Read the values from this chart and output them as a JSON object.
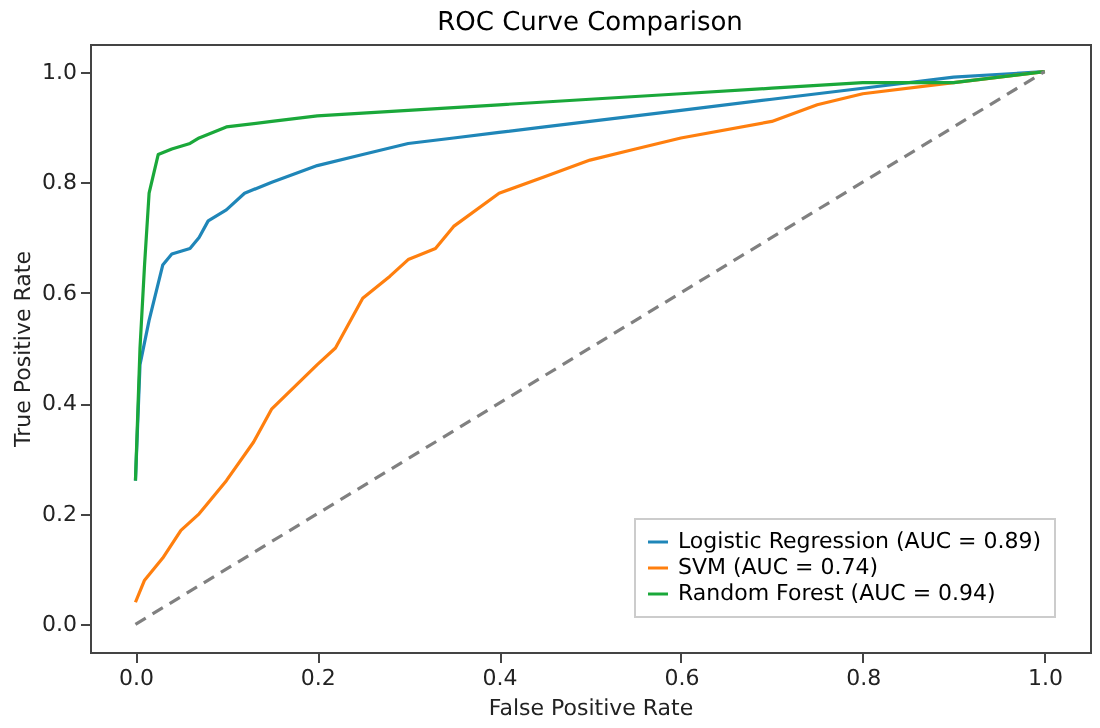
{
  "chart_data": {
    "type": "line",
    "title": "ROC Curve Comparison",
    "xlabel": "False Positive Rate",
    "ylabel": "True Positive Rate",
    "xlim": [
      -0.05,
      1.05
    ],
    "ylim": [
      -0.05,
      1.05
    ],
    "xticks": [
      {
        "value": 0,
        "label": "0.0"
      },
      {
        "value": 0.2,
        "label": "0.2"
      },
      {
        "value": 0.4,
        "label": "0.4"
      },
      {
        "value": 0.6,
        "label": "0.6"
      },
      {
        "value": 0.8,
        "label": "0.8"
      },
      {
        "value": 1,
        "label": "1.0"
      }
    ],
    "yticks": [
      {
        "value": 0,
        "label": "0.0"
      },
      {
        "value": 0.2,
        "label": "0.2"
      },
      {
        "value": 0.4,
        "label": "0.4"
      },
      {
        "value": 0.6,
        "label": "0.6"
      },
      {
        "value": 0.8,
        "label": "0.8"
      },
      {
        "value": 1,
        "label": "1.0"
      }
    ],
    "grid": false,
    "legend": "bottom right",
    "line_style": "solid",
    "marker": "none",
    "series": [
      {
        "name": "Logistic Regression (AUC = 0.89)",
        "color": "#1f86b8",
        "x": [
          0,
          0.005,
          0.015,
          0.03,
          0.04,
          0.06,
          0.07,
          0.08,
          0.1,
          0.12,
          0.15,
          0.2,
          0.25,
          0.3,
          0.35,
          0.4,
          0.45,
          0.5,
          0.6,
          0.7,
          0.8,
          0.9,
          1
        ],
        "values": [
          0.26,
          0.47,
          0.55,
          0.65,
          0.67,
          0.68,
          0.7,
          0.73,
          0.75,
          0.78,
          0.8,
          0.83,
          0.85,
          0.87,
          0.88,
          0.89,
          0.9,
          0.91,
          0.93,
          0.95,
          0.97,
          0.99,
          1
        ]
      },
      {
        "name": "SVM (AUC = 0.74)",
        "color": "#ff7f0e",
        "x": [
          0,
          0.01,
          0.03,
          0.05,
          0.07,
          0.1,
          0.13,
          0.15,
          0.2,
          0.22,
          0.25,
          0.28,
          0.3,
          0.33,
          0.35,
          0.4,
          0.45,
          0.5,
          0.55,
          0.6,
          0.7,
          0.75,
          0.8,
          0.9,
          1
        ],
        "values": [
          0.04,
          0.08,
          0.12,
          0.17,
          0.2,
          0.26,
          0.33,
          0.39,
          0.47,
          0.5,
          0.59,
          0.63,
          0.66,
          0.68,
          0.72,
          0.78,
          0.81,
          0.84,
          0.86,
          0.88,
          0.91,
          0.94,
          0.96,
          0.98,
          1
        ]
      },
      {
        "name": "Random Forest (AUC = 0.94)",
        "color": "#1aa83a",
        "x": [
          0,
          0.005,
          0.01,
          0.015,
          0.025,
          0.04,
          0.06,
          0.07,
          0.1,
          0.15,
          0.2,
          0.3,
          0.4,
          0.5,
          0.6,
          0.7,
          0.8,
          0.9,
          0.95,
          1
        ],
        "values": [
          0.26,
          0.5,
          0.65,
          0.78,
          0.85,
          0.86,
          0.87,
          0.88,
          0.9,
          0.91,
          0.92,
          0.93,
          0.94,
          0.95,
          0.96,
          0.97,
          0.98,
          0.98,
          0.99,
          1
        ]
      },
      {
        "color": "#808080",
        "line_style": "dashed",
        "x": [
          0,
          1
        ],
        "values": [
          0,
          1
        ]
      }
    ]
  }
}
